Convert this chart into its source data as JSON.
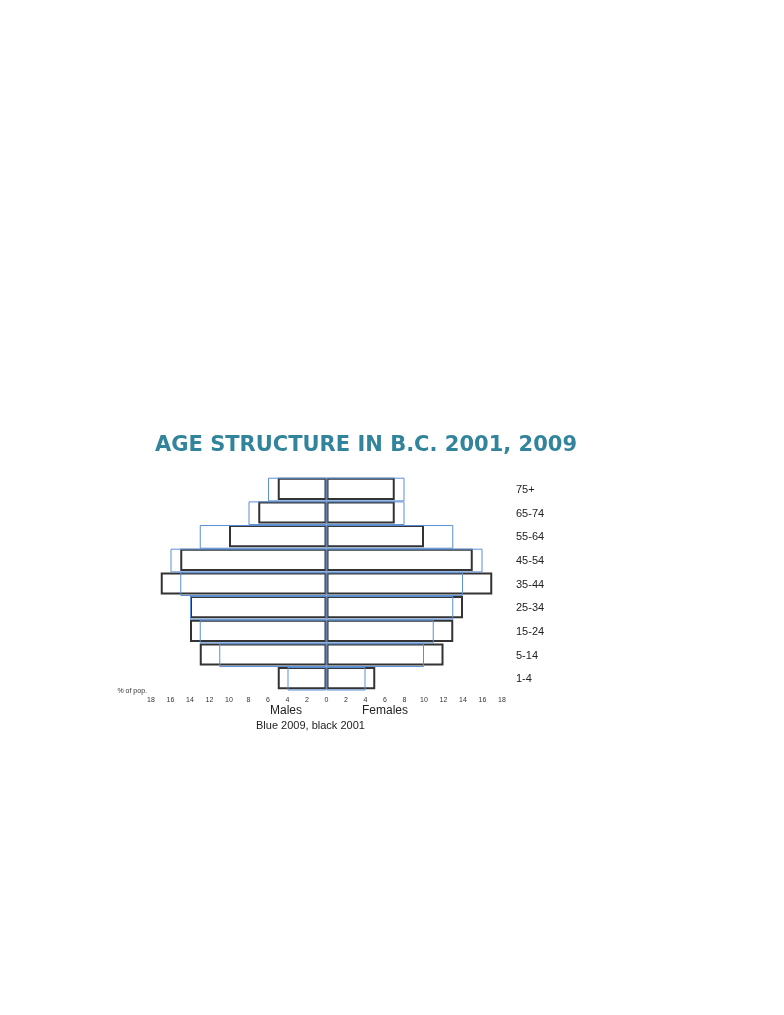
{
  "chart_data": {
    "type": "bar",
    "orientation": "horizontal",
    "title": "AGE STRUCTURE IN B.C. 2001, 2009",
    "xlabel": "% of pop.",
    "categories": [
      "75+",
      "65-74",
      "55-64",
      "45-54",
      "35-44",
      "25-34",
      "15-24",
      "5-14",
      "1-4"
    ],
    "series": [
      {
        "color": "#5b8fd6",
        "values": [
          -6,
          -8,
          -13,
          -16,
          -15,
          -14,
          -13,
          -11,
          -4
        ]
      },
      {
        "color": "#5b8fd6",
        "values": [
          8,
          8,
          13,
          16,
          14,
          13,
          11,
          10,
          4
        ]
      },
      {
        "color": "#333333",
        "values": [
          -5,
          -7,
          -10,
          -15,
          -17,
          -14,
          -14,
          -13,
          -5
        ]
      },
      {
        "color": "#333333",
        "values": [
          7,
          7,
          10,
          15,
          17,
          14,
          13,
          12,
          5
        ]
      }
    ],
    "xlim": [
      -18,
      18
    ],
    "xticks": [
      {
        "value": -18,
        "label": "18"
      },
      {
        "value": -16,
        "label": "16"
      },
      {
        "value": -14,
        "label": "14"
      },
      {
        "value": -12,
        "label": "12"
      },
      {
        "value": -10,
        "label": "10"
      },
      {
        "value": -8,
        "label": "8"
      },
      {
        "value": -6,
        "label": "6"
      },
      {
        "value": -4,
        "label": "4"
      },
      {
        "value": -2,
        "label": "2"
      },
      0,
      2,
      4,
      6,
      8,
      10,
      12,
      14,
      16,
      18
    ],
    "annotations": [
      "Males",
      "Females",
      "Blue 2009, black 2001"
    ]
  }
}
